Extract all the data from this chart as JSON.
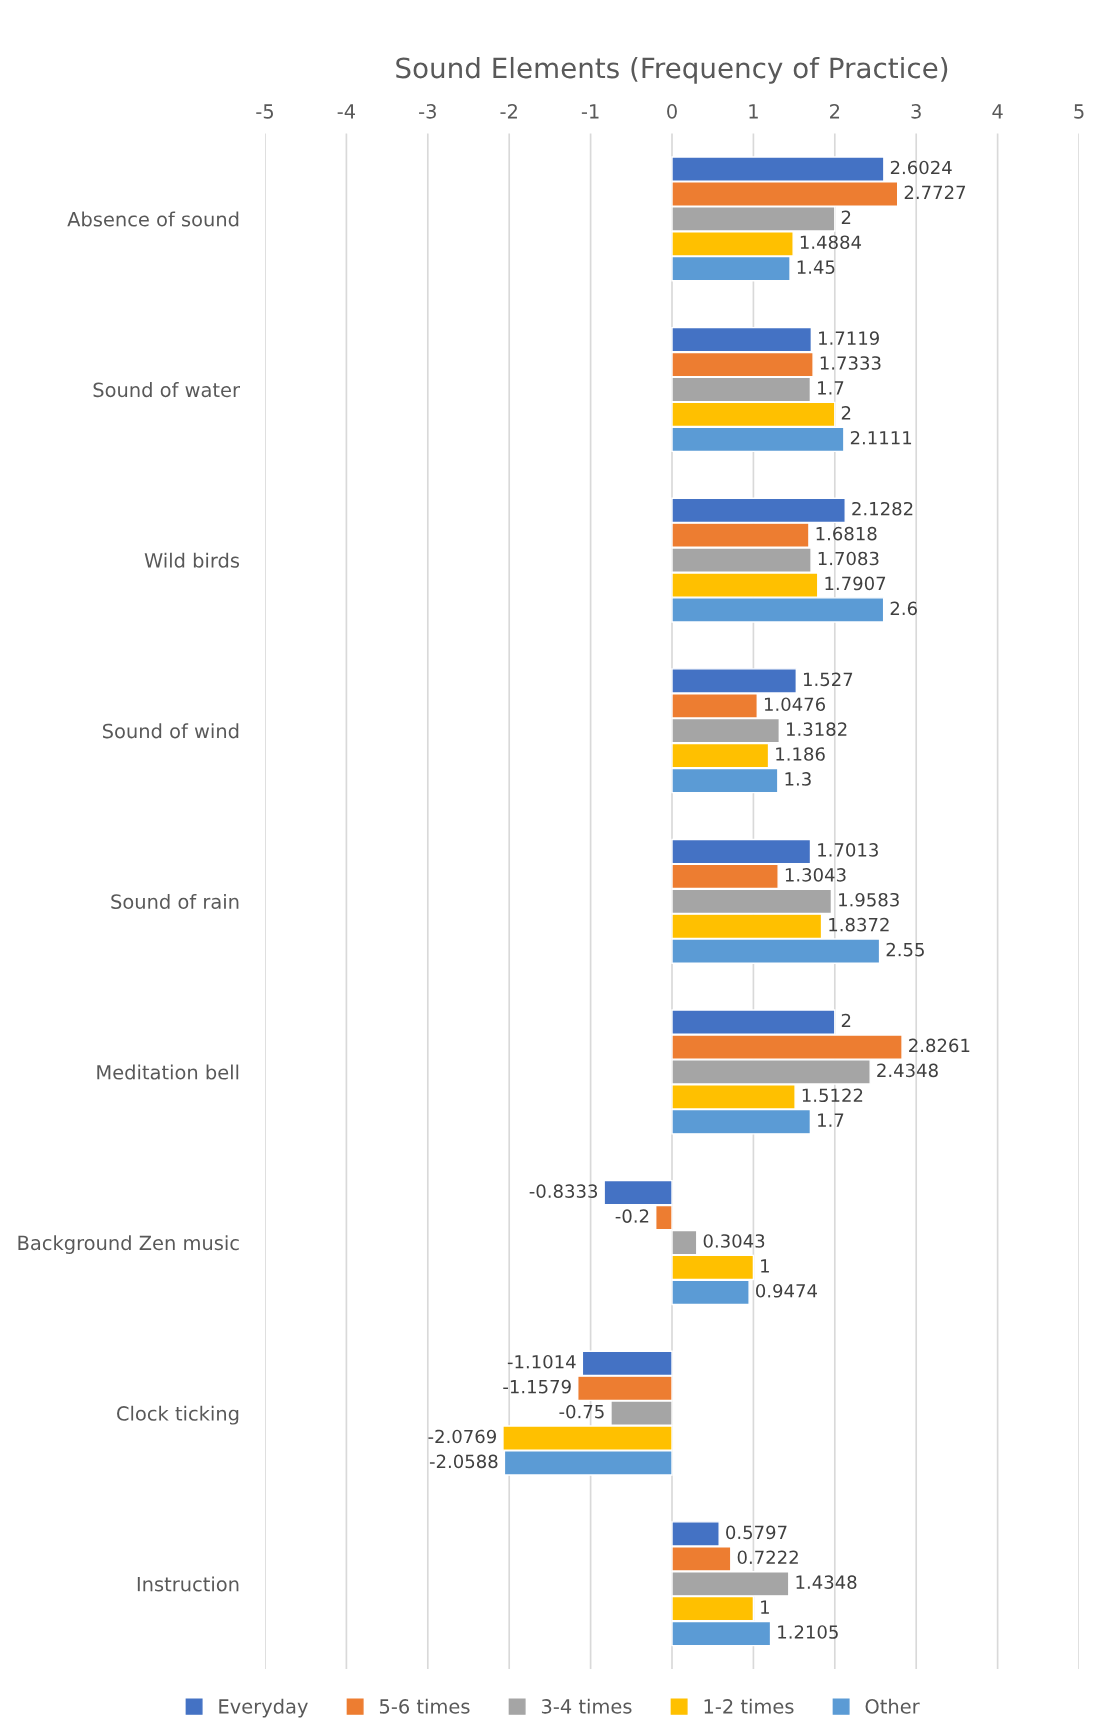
{
  "chart_data": {
    "type": "bar",
    "orientation": "horizontal",
    "title": "Sound Elements (Frequency of Practice)",
    "categories": [
      "Absence of sound",
      "Sound of water",
      "Wild birds",
      "Sound of wind",
      "Sound of rain",
      "Meditation bell",
      "Background Zen music",
      "Clock ticking",
      "Instruction"
    ],
    "series": [
      {
        "name": "Everyday",
        "color": "#4472c4",
        "values": [
          2.6024,
          1.7119,
          2.1282,
          1.527,
          1.7013,
          2,
          -0.8333,
          -1.1014,
          0.5797
        ]
      },
      {
        "name": "5-6 times",
        "color": "#ed7d31",
        "values": [
          2.7727,
          1.7333,
          1.6818,
          1.0476,
          1.3043,
          2.8261,
          -0.2,
          -1.1579,
          0.7222
        ]
      },
      {
        "name": "3-4 times",
        "color": "#a5a5a5",
        "values": [
          2,
          1.7,
          1.7083,
          1.3182,
          1.9583,
          2.4348,
          0.3043,
          -0.75,
          1.4348
        ]
      },
      {
        "name": "1-2 times",
        "color": "#ffc000",
        "values": [
          1.4884,
          2,
          1.7907,
          1.186,
          1.8372,
          1.5122,
          1,
          -2.0769,
          1
        ]
      },
      {
        "name": "Other",
        "color": "#5b9bd5",
        "values": [
          1.45,
          2.1111,
          2.6,
          1.3,
          2.55,
          1.7,
          0.9474,
          -2.0588,
          1.2105
        ]
      }
    ],
    "xlim": [
      -5,
      5
    ],
    "xticks": [
      -5,
      -4,
      -3,
      -2,
      -1,
      0,
      1,
      2,
      3,
      4,
      5
    ],
    "grid": "x",
    "legend": "bottom",
    "data_labels": true
  }
}
